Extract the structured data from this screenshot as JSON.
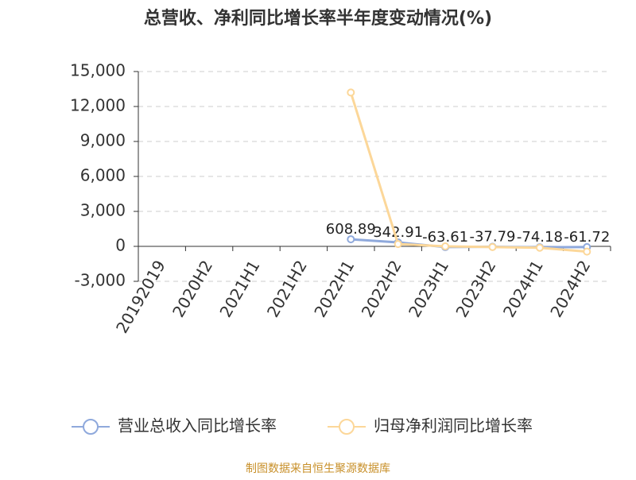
{
  "chart_data": {
    "type": "line",
    "title": "总营收、净利同比增长率半年度变动情况(%)",
    "categories": [
      "20192019",
      "2020H2",
      "2021H1",
      "2021H2",
      "2022H1",
      "2022H2",
      "2023H1",
      "2023H2",
      "2024H1",
      "2024H2"
    ],
    "series": [
      {
        "name": "营业总收入同比增长率",
        "color": "#8fa9dc",
        "values": [
          null,
          null,
          null,
          null,
          608.89,
          342.91,
          -63.61,
          -37.79,
          -74.18,
          -61.72
        ]
      },
      {
        "name": "归母净利润同比增长率",
        "color": "#fcd799",
        "values": [
          null,
          null,
          null,
          null,
          13200,
          200,
          0,
          -60,
          -120,
          -450
        ]
      }
    ],
    "ylim": [
      -3000,
      15000
    ],
    "yticks": [
      {
        "value": -3000,
        "label": "-3,000"
      },
      0,
      {
        "value": 3000,
        "label": "3,000"
      },
      {
        "value": 6000,
        "label": "6,000"
      },
      {
        "value": 9000,
        "label": "9,000"
      },
      {
        "value": 12000,
        "label": "12,000"
      },
      {
        "value": 15000,
        "label": "15,000"
      }
    ],
    "grid": true,
    "source": "制图数据来自恒生聚源数据库"
  }
}
